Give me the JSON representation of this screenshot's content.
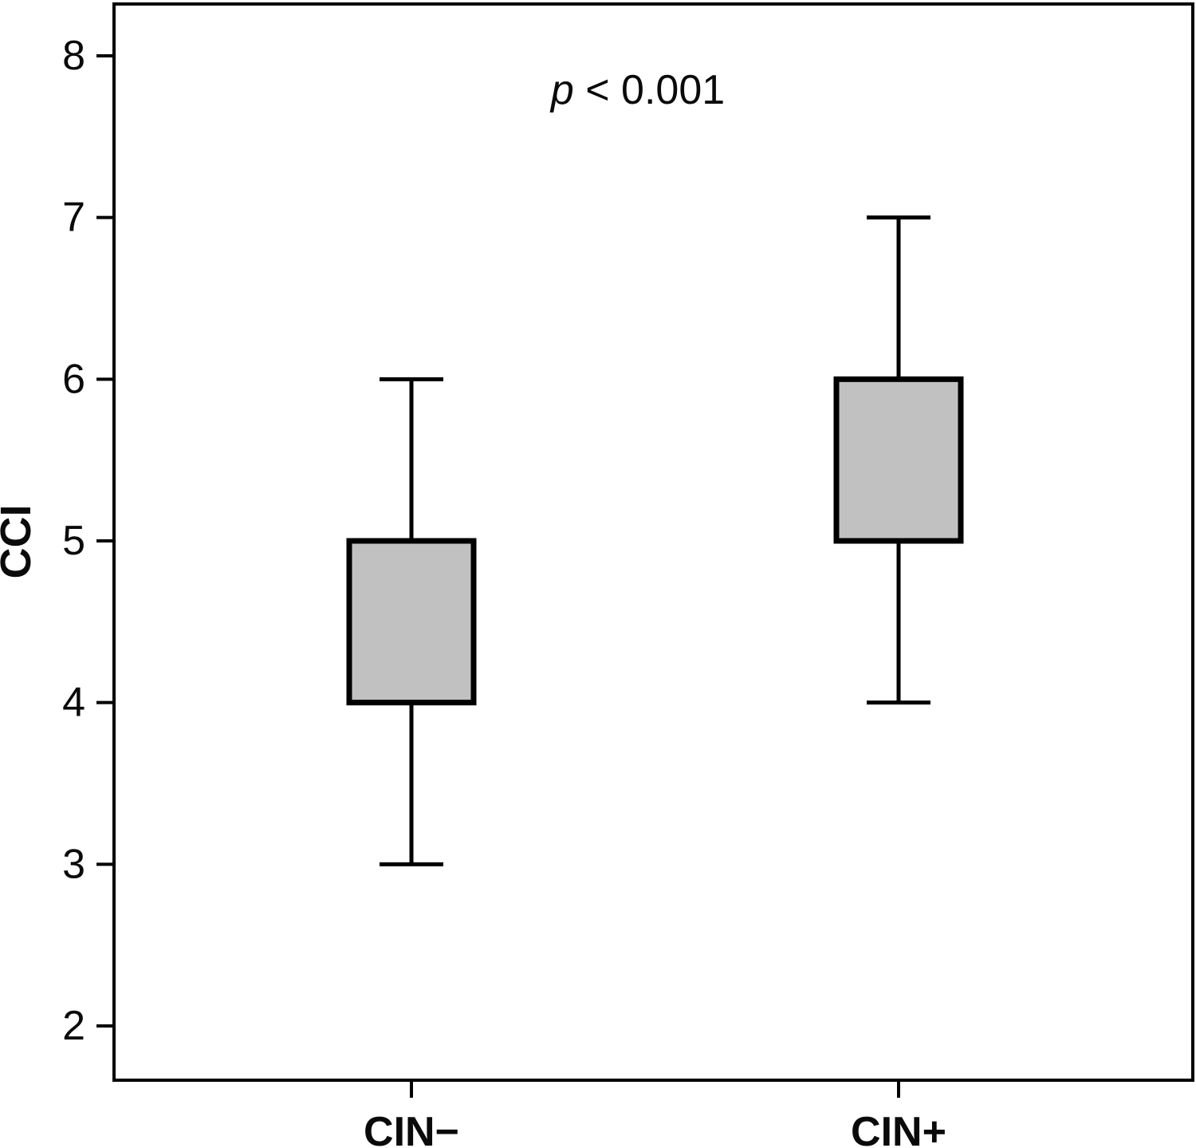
{
  "figure": {
    "background": "#ffffff"
  },
  "chart_data": {
    "type": "box",
    "title": "",
    "xlabel": "",
    "ylabel": "CCI",
    "categories": [
      "CIN−",
      "CIN+"
    ],
    "yticks": [
      8,
      7,
      6,
      5,
      4,
      3,
      2
    ],
    "ylim": [
      1.66,
      8.32
    ],
    "grid": false,
    "legend": "none",
    "annotation": {
      "p": "p",
      "rest": " < 0.001"
    },
    "series": [
      {
        "name": "CIN−",
        "whisker_low": 3,
        "q1": 4,
        "q3": 5,
        "whisker_high": 6,
        "median_line": "none"
      },
      {
        "name": "CIN+",
        "whisker_low": 4,
        "q1": 5,
        "q3": 6,
        "whisker_high": 7,
        "median_line": "none"
      }
    ],
    "colors": {
      "box_fill": "#c1c1c1",
      "line": "#000000",
      "text": "#0a0a0a"
    }
  }
}
